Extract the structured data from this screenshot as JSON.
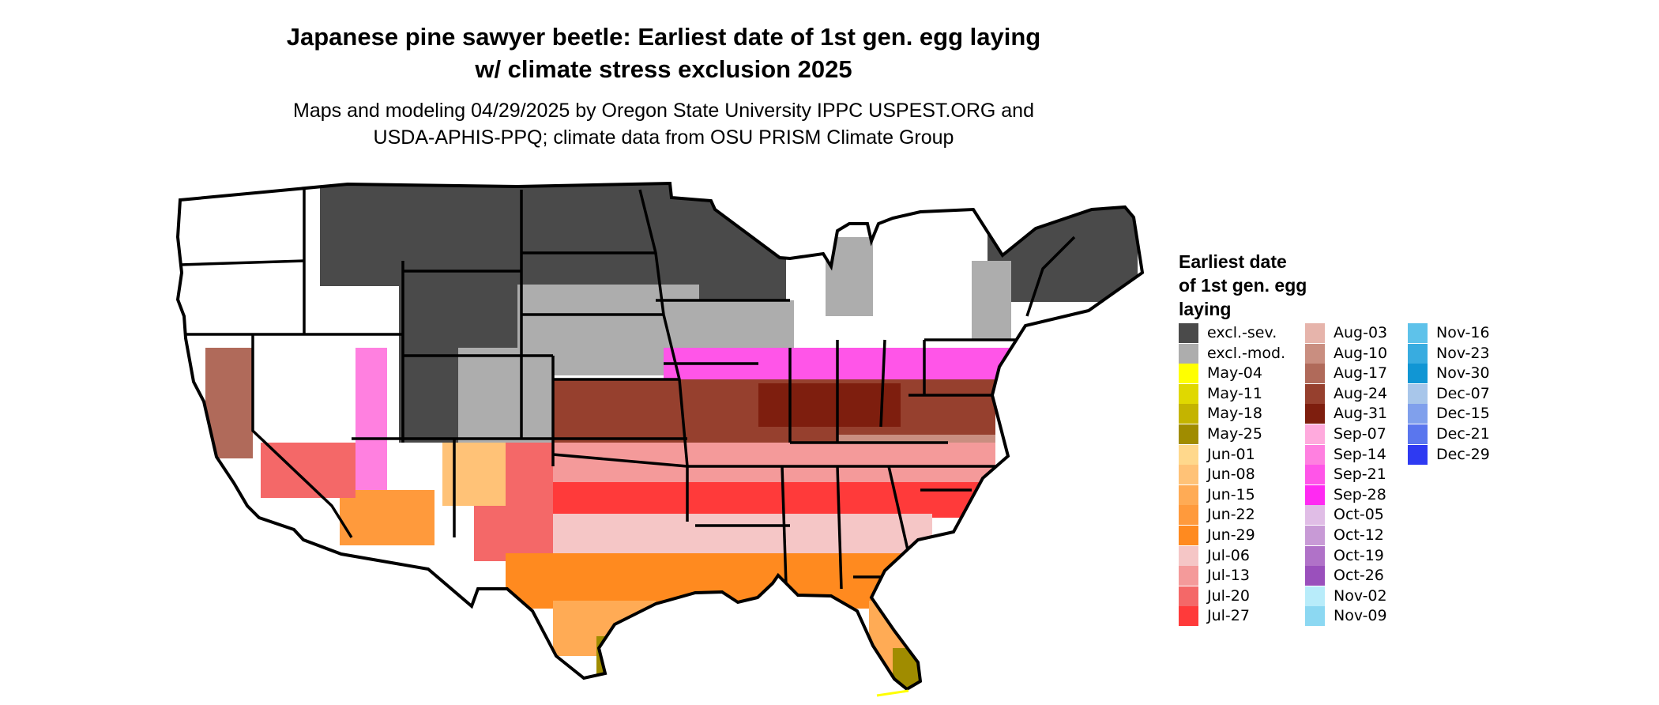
{
  "header": {
    "title_line1": "Japanese pine sawyer beetle: Earliest date of 1st gen. egg laying",
    "title_line2": "w/ climate stress exclusion 2025",
    "subtitle_line1": "Maps and modeling 04/29/2025 by Oregon State University IPPC USPEST.ORG and",
    "subtitle_line2": "USDA-APHIS-PPQ; climate data from OSU PRISM Climate Group"
  },
  "legend": {
    "title_line1": "Earliest date",
    "title_line2": "of 1st gen. egg",
    "title_line3": "laying",
    "columns": [
      [
        {
          "label": "excl.-sev.",
          "color": "#4a4a4a"
        },
        {
          "label": "excl.-mod.",
          "color": "#adadad"
        },
        {
          "label": "May-04",
          "color": "#ffff00"
        },
        {
          "label": "May-11",
          "color": "#e0d800"
        },
        {
          "label": "May-18",
          "color": "#c4b400"
        },
        {
          "label": "May-25",
          "color": "#a08c00"
        },
        {
          "label": "Jun-01",
          "color": "#ffd88c"
        },
        {
          "label": "Jun-08",
          "color": "#ffc277"
        },
        {
          "label": "Jun-15",
          "color": "#ffab55"
        },
        {
          "label": "Jun-22",
          "color": "#ff9a3c"
        },
        {
          "label": "Jun-29",
          "color": "#ff8a1f"
        },
        {
          "label": "Jul-06",
          "color": "#f5c6c6"
        },
        {
          "label": "Jul-13",
          "color": "#f49a9a"
        },
        {
          "label": "Jul-20",
          "color": "#f46868"
        },
        {
          "label": "Jul-27",
          "color": "#ff3a3a"
        }
      ],
      [
        {
          "label": "Aug-03",
          "color": "#e6b4ab"
        },
        {
          "label": "Aug-10",
          "color": "#c98e80"
        },
        {
          "label": "Aug-17",
          "color": "#b06a5a"
        },
        {
          "label": "Aug-24",
          "color": "#96402e"
        },
        {
          "label": "Aug-31",
          "color": "#7e1e0e"
        },
        {
          "label": "Sep-07",
          "color": "#ffaadd"
        },
        {
          "label": "Sep-14",
          "color": "#ff80e0"
        },
        {
          "label": "Sep-21",
          "color": "#ff55e8"
        },
        {
          "label": "Sep-28",
          "color": "#ff2af2"
        },
        {
          "label": "Oct-05",
          "color": "#e0bde6"
        },
        {
          "label": "Oct-12",
          "color": "#c89ad6"
        },
        {
          "label": "Oct-19",
          "color": "#b072c8"
        },
        {
          "label": "Oct-26",
          "color": "#9a50bc"
        },
        {
          "label": "Nov-02",
          "color": "#b8ecfa"
        },
        {
          "label": "Nov-09",
          "color": "#8cd8f2"
        }
      ],
      [
        {
          "label": "Nov-16",
          "color": "#5ec2ea"
        },
        {
          "label": "Nov-23",
          "color": "#38ace0"
        },
        {
          "label": "Nov-30",
          "color": "#1196d4"
        },
        {
          "label": "Dec-07",
          "color": "#a8c6ea"
        },
        {
          "label": "Dec-15",
          "color": "#80a0ec"
        },
        {
          "label": "Dec-21",
          "color": "#5a76ee"
        },
        {
          "label": "Dec-29",
          "color": "#2e3af2"
        }
      ]
    ]
  }
}
